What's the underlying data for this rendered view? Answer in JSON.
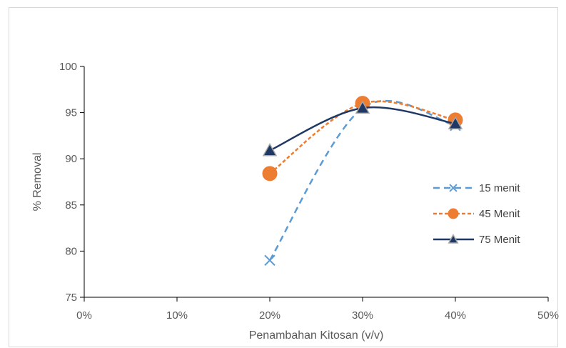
{
  "chart_data": {
    "type": "line",
    "title": "",
    "xlabel": "Penambahan Kitosan (v/v)",
    "ylabel": "% Removal",
    "xlim": [
      0,
      50
    ],
    "ylim": [
      75,
      100
    ],
    "x_ticks": [
      "0%",
      "10%",
      "20%",
      "30%",
      "40%",
      "50%"
    ],
    "x_tick_values": [
      0,
      10,
      20,
      30,
      40,
      50
    ],
    "y_ticks": [
      "75",
      "80",
      "85",
      "90",
      "95",
      "100"
    ],
    "y_tick_values": [
      75,
      80,
      85,
      90,
      95,
      100
    ],
    "grid": false,
    "legend_position": "right",
    "series": [
      {
        "name": "15 menit",
        "x": [
          20,
          30,
          40
        ],
        "y": [
          79.0,
          95.5,
          93.6
        ],
        "color": "#5b9bd5",
        "line_style": "dashed",
        "marker": "x",
        "smooth": true
      },
      {
        "name": "45 Menit",
        "x": [
          20,
          30,
          40
        ],
        "y": [
          88.4,
          96.0,
          94.2
        ],
        "color": "#ed7d31",
        "line_style": "dotted",
        "marker": "circle",
        "smooth": true
      },
      {
        "name": "75 Menit",
        "x": [
          20,
          30,
          40
        ],
        "y": [
          90.9,
          95.5,
          93.8
        ],
        "color": "#1f3864",
        "line_style": "solid",
        "marker": "triangle",
        "smooth": true
      }
    ]
  }
}
